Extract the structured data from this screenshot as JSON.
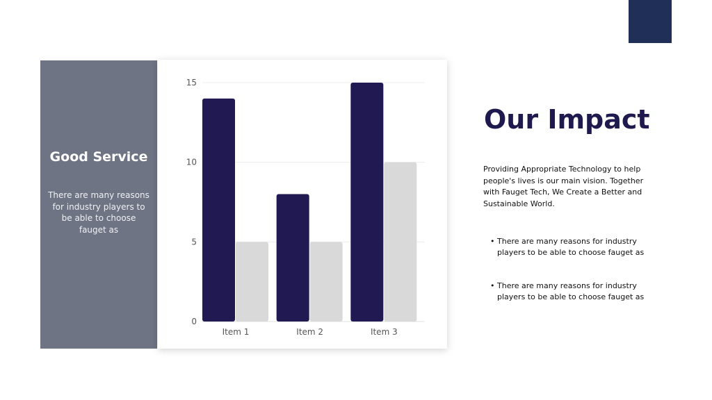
{
  "side_panel": {
    "title": "Good Service",
    "text": "There are many reasons for industry players to be able to choose fauget as"
  },
  "heading": "Our Impact",
  "description": "Providing Appropriate Technology to help people's lives is our main vision. Together with Fauget Tech, We Create a Better and Sustainable World.",
  "bullets": [
    "There are many reasons for industry players to be able to choose fauget as",
    "There are many reasons for industry players to be able to choose fauget as"
  ],
  "colors": {
    "accent_square": "#1f2f57",
    "side_panel": "#6e7484",
    "series_dark": "#211a52",
    "series_light": "#d9d9d9",
    "heading": "#1f1a4d"
  },
  "chart_data": {
    "type": "bar",
    "categories": [
      "Item 1",
      "Item 2",
      "Item 3"
    ],
    "series": [
      {
        "values": [
          14,
          8,
          15
        ],
        "color": "#211a52"
      },
      {
        "values": [
          5,
          5,
          10
        ],
        "color": "#d9d9d9"
      }
    ],
    "ylim": [
      0,
      15
    ],
    "yticks": [
      0,
      5,
      10,
      15
    ],
    "grid": true,
    "legend": "none"
  }
}
